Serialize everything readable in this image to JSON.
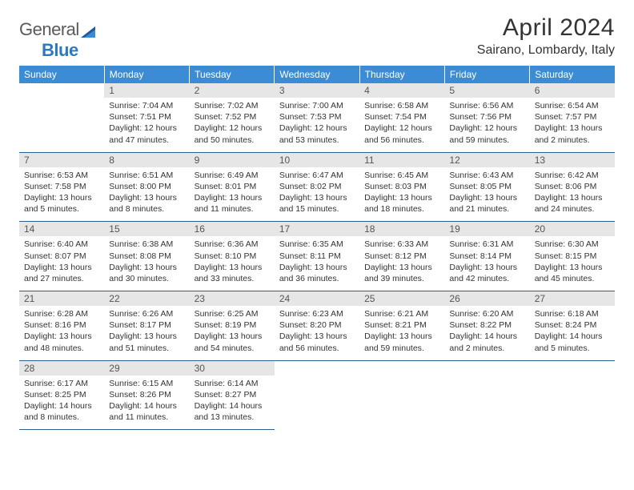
{
  "logo": {
    "text1": "General",
    "text2": "Blue"
  },
  "title": "April 2024",
  "location": "Sairano, Lombardy, Italy",
  "colors": {
    "header_bg": "#3b8cd4",
    "header_text": "#ffffff",
    "daynum_bg": "#e6e6e6",
    "border": "#2b5f8f",
    "logo_gray": "#5a5a5a",
    "logo_blue": "#2b7ac0"
  },
  "day_names": [
    "Sunday",
    "Monday",
    "Tuesday",
    "Wednesday",
    "Thursday",
    "Friday",
    "Saturday"
  ],
  "weeks": [
    [
      {
        "num": "",
        "sunrise": "",
        "sunset": "",
        "daylight": ""
      },
      {
        "num": "1",
        "sunrise": "Sunrise: 7:04 AM",
        "sunset": "Sunset: 7:51 PM",
        "daylight": "Daylight: 12 hours and 47 minutes."
      },
      {
        "num": "2",
        "sunrise": "Sunrise: 7:02 AM",
        "sunset": "Sunset: 7:52 PM",
        "daylight": "Daylight: 12 hours and 50 minutes."
      },
      {
        "num": "3",
        "sunrise": "Sunrise: 7:00 AM",
        "sunset": "Sunset: 7:53 PM",
        "daylight": "Daylight: 12 hours and 53 minutes."
      },
      {
        "num": "4",
        "sunrise": "Sunrise: 6:58 AM",
        "sunset": "Sunset: 7:54 PM",
        "daylight": "Daylight: 12 hours and 56 minutes."
      },
      {
        "num": "5",
        "sunrise": "Sunrise: 6:56 AM",
        "sunset": "Sunset: 7:56 PM",
        "daylight": "Daylight: 12 hours and 59 minutes."
      },
      {
        "num": "6",
        "sunrise": "Sunrise: 6:54 AM",
        "sunset": "Sunset: 7:57 PM",
        "daylight": "Daylight: 13 hours and 2 minutes."
      }
    ],
    [
      {
        "num": "7",
        "sunrise": "Sunrise: 6:53 AM",
        "sunset": "Sunset: 7:58 PM",
        "daylight": "Daylight: 13 hours and 5 minutes."
      },
      {
        "num": "8",
        "sunrise": "Sunrise: 6:51 AM",
        "sunset": "Sunset: 8:00 PM",
        "daylight": "Daylight: 13 hours and 8 minutes."
      },
      {
        "num": "9",
        "sunrise": "Sunrise: 6:49 AM",
        "sunset": "Sunset: 8:01 PM",
        "daylight": "Daylight: 13 hours and 11 minutes."
      },
      {
        "num": "10",
        "sunrise": "Sunrise: 6:47 AM",
        "sunset": "Sunset: 8:02 PM",
        "daylight": "Daylight: 13 hours and 15 minutes."
      },
      {
        "num": "11",
        "sunrise": "Sunrise: 6:45 AM",
        "sunset": "Sunset: 8:03 PM",
        "daylight": "Daylight: 13 hours and 18 minutes."
      },
      {
        "num": "12",
        "sunrise": "Sunrise: 6:43 AM",
        "sunset": "Sunset: 8:05 PM",
        "daylight": "Daylight: 13 hours and 21 minutes."
      },
      {
        "num": "13",
        "sunrise": "Sunrise: 6:42 AM",
        "sunset": "Sunset: 8:06 PM",
        "daylight": "Daylight: 13 hours and 24 minutes."
      }
    ],
    [
      {
        "num": "14",
        "sunrise": "Sunrise: 6:40 AM",
        "sunset": "Sunset: 8:07 PM",
        "daylight": "Daylight: 13 hours and 27 minutes."
      },
      {
        "num": "15",
        "sunrise": "Sunrise: 6:38 AM",
        "sunset": "Sunset: 8:08 PM",
        "daylight": "Daylight: 13 hours and 30 minutes."
      },
      {
        "num": "16",
        "sunrise": "Sunrise: 6:36 AM",
        "sunset": "Sunset: 8:10 PM",
        "daylight": "Daylight: 13 hours and 33 minutes."
      },
      {
        "num": "17",
        "sunrise": "Sunrise: 6:35 AM",
        "sunset": "Sunset: 8:11 PM",
        "daylight": "Daylight: 13 hours and 36 minutes."
      },
      {
        "num": "18",
        "sunrise": "Sunrise: 6:33 AM",
        "sunset": "Sunset: 8:12 PM",
        "daylight": "Daylight: 13 hours and 39 minutes."
      },
      {
        "num": "19",
        "sunrise": "Sunrise: 6:31 AM",
        "sunset": "Sunset: 8:14 PM",
        "daylight": "Daylight: 13 hours and 42 minutes."
      },
      {
        "num": "20",
        "sunrise": "Sunrise: 6:30 AM",
        "sunset": "Sunset: 8:15 PM",
        "daylight": "Daylight: 13 hours and 45 minutes."
      }
    ],
    [
      {
        "num": "21",
        "sunrise": "Sunrise: 6:28 AM",
        "sunset": "Sunset: 8:16 PM",
        "daylight": "Daylight: 13 hours and 48 minutes."
      },
      {
        "num": "22",
        "sunrise": "Sunrise: 6:26 AM",
        "sunset": "Sunset: 8:17 PM",
        "daylight": "Daylight: 13 hours and 51 minutes."
      },
      {
        "num": "23",
        "sunrise": "Sunrise: 6:25 AM",
        "sunset": "Sunset: 8:19 PM",
        "daylight": "Daylight: 13 hours and 54 minutes."
      },
      {
        "num": "24",
        "sunrise": "Sunrise: 6:23 AM",
        "sunset": "Sunset: 8:20 PM",
        "daylight": "Daylight: 13 hours and 56 minutes."
      },
      {
        "num": "25",
        "sunrise": "Sunrise: 6:21 AM",
        "sunset": "Sunset: 8:21 PM",
        "daylight": "Daylight: 13 hours and 59 minutes."
      },
      {
        "num": "26",
        "sunrise": "Sunrise: 6:20 AM",
        "sunset": "Sunset: 8:22 PM",
        "daylight": "Daylight: 14 hours and 2 minutes."
      },
      {
        "num": "27",
        "sunrise": "Sunrise: 6:18 AM",
        "sunset": "Sunset: 8:24 PM",
        "daylight": "Daylight: 14 hours and 5 minutes."
      }
    ],
    [
      {
        "num": "28",
        "sunrise": "Sunrise: 6:17 AM",
        "sunset": "Sunset: 8:25 PM",
        "daylight": "Daylight: 14 hours and 8 minutes."
      },
      {
        "num": "29",
        "sunrise": "Sunrise: 6:15 AM",
        "sunset": "Sunset: 8:26 PM",
        "daylight": "Daylight: 14 hours and 11 minutes."
      },
      {
        "num": "30",
        "sunrise": "Sunrise: 6:14 AM",
        "sunset": "Sunset: 8:27 PM",
        "daylight": "Daylight: 14 hours and 13 minutes."
      },
      {
        "num": "",
        "sunrise": "",
        "sunset": "",
        "daylight": ""
      },
      {
        "num": "",
        "sunrise": "",
        "sunset": "",
        "daylight": ""
      },
      {
        "num": "",
        "sunrise": "",
        "sunset": "",
        "daylight": ""
      },
      {
        "num": "",
        "sunrise": "",
        "sunset": "",
        "daylight": ""
      }
    ]
  ]
}
